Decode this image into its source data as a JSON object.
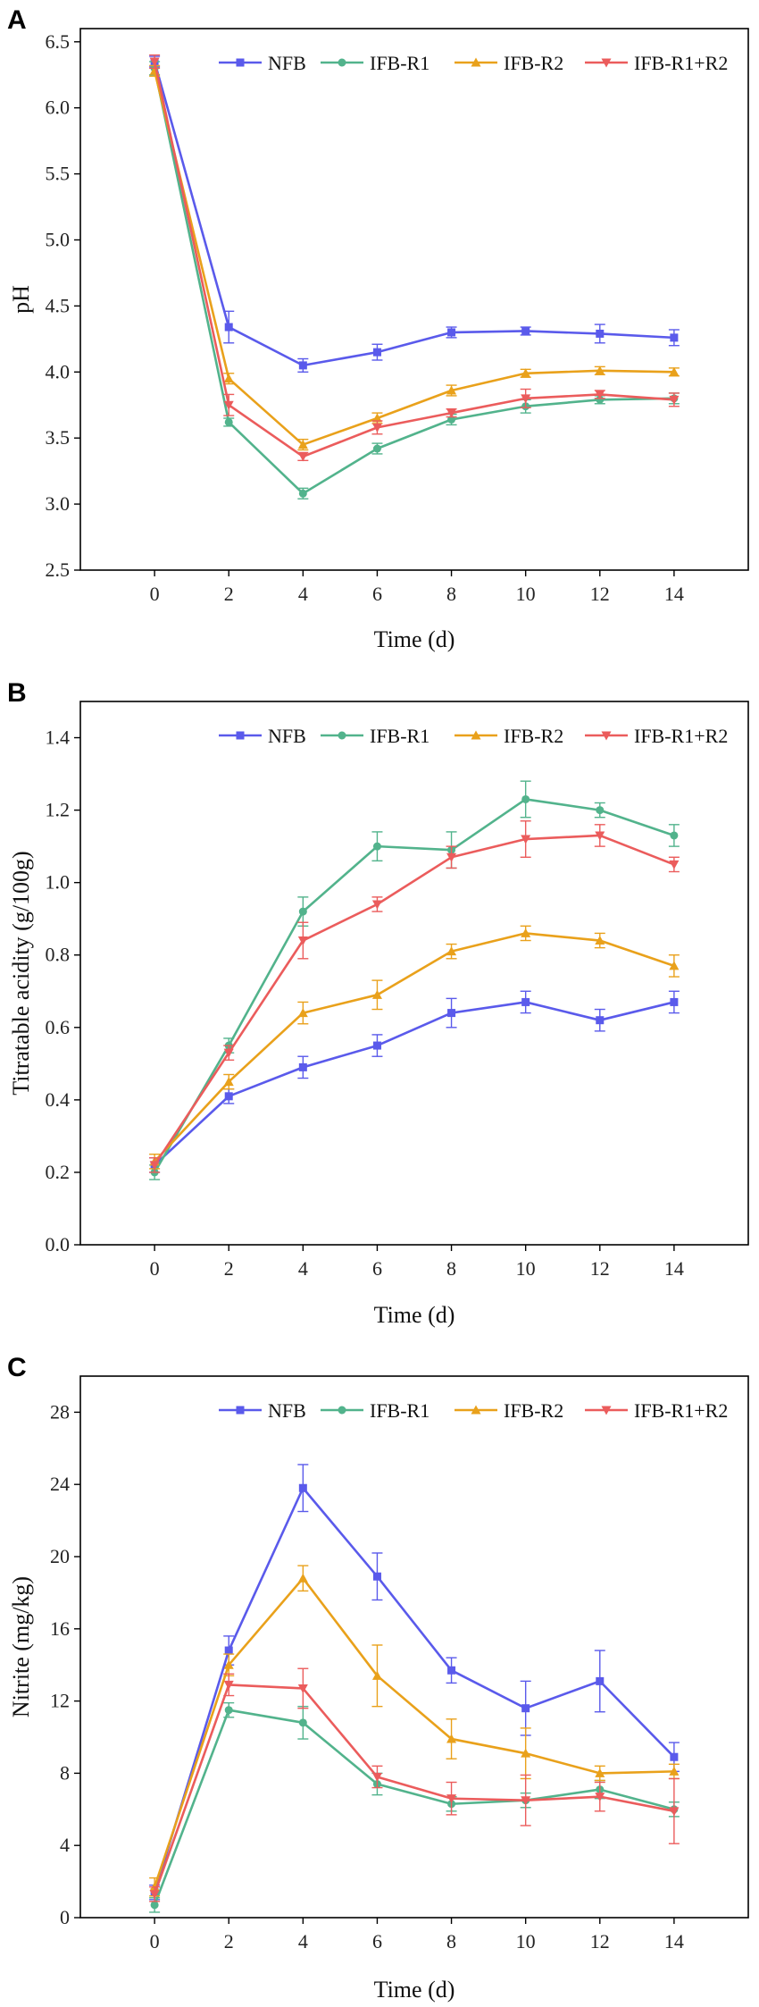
{
  "chart_data": [
    {
      "panel": "A",
      "type": "line",
      "xlabel": "Time (d)",
      "ylabel": "pH",
      "x": [
        0,
        2,
        4,
        6,
        8,
        10,
        12,
        14
      ],
      "xticks": [
        "0",
        "2",
        "4",
        "6",
        "8",
        "10",
        "12",
        "14"
      ],
      "xlim": [
        -2,
        16
      ],
      "ylim": [
        2.5,
        6.6
      ],
      "yticks": [
        "2.5",
        "3.0",
        "3.5",
        "4.0",
        "4.5",
        "5.0",
        "5.5",
        "6.0",
        "6.5"
      ],
      "legend_position": "top",
      "series": [
        {
          "name": "NFB",
          "color": "#5a5aeb",
          "marker": "square",
          "values": [
            6.35,
            4.34,
            4.05,
            4.15,
            4.3,
            4.31,
            4.29,
            4.26
          ],
          "errors": [
            0.04,
            0.12,
            0.05,
            0.06,
            0.04,
            0.03,
            0.07,
            0.06
          ]
        },
        {
          "name": "IFB-R1",
          "color": "#52b38c",
          "marker": "circle",
          "values": [
            6.3,
            3.62,
            3.08,
            3.42,
            3.64,
            3.74,
            3.79,
            3.8
          ],
          "errors": [
            0.05,
            0.03,
            0.04,
            0.04,
            0.04,
            0.05,
            0.03,
            0.04
          ]
        },
        {
          "name": "IFB-R2",
          "color": "#e9a11b",
          "marker": "triangle-up",
          "values": [
            6.28,
            3.95,
            3.45,
            3.65,
            3.86,
            3.99,
            4.01,
            4.0
          ],
          "errors": [
            0.04,
            0.04,
            0.04,
            0.04,
            0.04,
            0.03,
            0.03,
            0.03
          ]
        },
        {
          "name": "IFB-R1+R2",
          "color": "#eb5c5c",
          "marker": "triangle-down",
          "values": [
            6.35,
            3.75,
            3.36,
            3.58,
            3.69,
            3.8,
            3.83,
            3.79
          ],
          "errors": [
            0.05,
            0.08,
            0.03,
            0.05,
            0.03,
            0.07,
            0.03,
            0.05
          ]
        }
      ]
    },
    {
      "panel": "B",
      "type": "line",
      "xlabel": "Time (d)",
      "ylabel": "Titratable acidity (g/100g)",
      "x": [
        0,
        2,
        4,
        6,
        8,
        10,
        12,
        14
      ],
      "xticks": [
        "0",
        "2",
        "4",
        "6",
        "8",
        "10",
        "12",
        "14"
      ],
      "xlim": [
        -2,
        16
      ],
      "ylim": [
        0.0,
        1.5
      ],
      "yticks": [
        "0.0",
        "0.2",
        "0.4",
        "0.6",
        "0.8",
        "1.0",
        "1.2",
        "1.4"
      ],
      "legend_position": "top",
      "series": [
        {
          "name": "NFB",
          "color": "#5a5aeb",
          "marker": "square",
          "values": [
            0.22,
            0.41,
            0.49,
            0.55,
            0.64,
            0.67,
            0.62,
            0.67
          ],
          "errors": [
            0.02,
            0.02,
            0.03,
            0.03,
            0.04,
            0.03,
            0.03,
            0.03
          ]
        },
        {
          "name": "IFB-R1",
          "color": "#52b38c",
          "marker": "circle",
          "values": [
            0.2,
            0.55,
            0.92,
            1.1,
            1.09,
            1.23,
            1.2,
            1.13
          ],
          "errors": [
            0.02,
            0.02,
            0.04,
            0.04,
            0.05,
            0.05,
            0.02,
            0.03
          ]
        },
        {
          "name": "IFB-R2",
          "color": "#e9a11b",
          "marker": "triangle-up",
          "values": [
            0.23,
            0.45,
            0.64,
            0.69,
            0.81,
            0.86,
            0.84,
            0.77
          ],
          "errors": [
            0.02,
            0.02,
            0.03,
            0.04,
            0.02,
            0.02,
            0.02,
            0.03
          ]
        },
        {
          "name": "IFB-R1+R2",
          "color": "#eb5c5c",
          "marker": "triangle-down",
          "values": [
            0.22,
            0.53,
            0.84,
            0.94,
            1.07,
            1.12,
            1.13,
            1.05
          ],
          "errors": [
            0.02,
            0.02,
            0.05,
            0.02,
            0.03,
            0.05,
            0.03,
            0.02
          ]
        }
      ]
    },
    {
      "panel": "C",
      "type": "line",
      "xlabel": "Time (d)",
      "ylabel": "Nitrite (mg/kg)",
      "x": [
        0,
        2,
        4,
        6,
        8,
        10,
        12,
        14
      ],
      "xticks": [
        "0",
        "2",
        "4",
        "6",
        "8",
        "10",
        "12",
        "14"
      ],
      "xlim": [
        -2,
        16
      ],
      "ylim": [
        0,
        30
      ],
      "yticks": [
        "0",
        "4",
        "8",
        "12",
        "16",
        "20",
        "24",
        "28"
      ],
      "legend_position": "top",
      "series": [
        {
          "name": "NFB",
          "color": "#5a5aeb",
          "marker": "square",
          "values": [
            1.4,
            14.8,
            23.8,
            18.9,
            13.7,
            11.6,
            13.1,
            8.9
          ],
          "errors": [
            0.4,
            0.8,
            1.3,
            1.3,
            0.7,
            1.5,
            1.7,
            0.8
          ]
        },
        {
          "name": "IFB-R1",
          "color": "#52b38c",
          "marker": "circle",
          "values": [
            0.7,
            11.5,
            10.8,
            7.4,
            6.3,
            6.5,
            7.1,
            6.0
          ],
          "errors": [
            0.4,
            0.4,
            0.9,
            0.6,
            0.4,
            0.4,
            0.5,
            0.4
          ]
        },
        {
          "name": "IFB-R2",
          "color": "#e9a11b",
          "marker": "triangle-up",
          "values": [
            1.7,
            14.0,
            18.8,
            13.4,
            9.9,
            9.1,
            8.0,
            8.1
          ],
          "errors": [
            0.5,
            0.6,
            0.7,
            1.7,
            1.1,
            1.4,
            0.4,
            0.4
          ]
        },
        {
          "name": "IFB-R1+R2",
          "color": "#eb5c5c",
          "marker": "triangle-down",
          "values": [
            1.3,
            12.9,
            12.7,
            7.8,
            6.6,
            6.5,
            6.7,
            5.9
          ],
          "errors": [
            0.4,
            0.6,
            1.1,
            0.6,
            0.9,
            1.4,
            0.8,
            1.8
          ]
        }
      ]
    }
  ]
}
